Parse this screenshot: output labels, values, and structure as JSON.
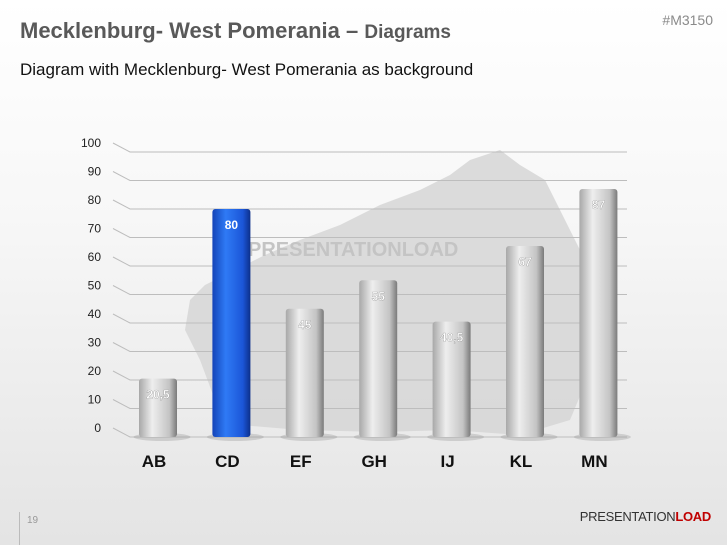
{
  "header": {
    "title_main": "Mecklenburg- West Pomerania – ",
    "title_sub": "Diagrams",
    "code": "#M3150",
    "subtitle": "Diagram with Mecklenburg- West Pomerania as background"
  },
  "footer": {
    "page_number": "19",
    "logo_part1": "PRESENTATION",
    "logo_part2": "LOAD"
  },
  "chart_data": {
    "type": "bar",
    "categories": [
      "AB",
      "CD",
      "EF",
      "GH",
      "IJ",
      "KL",
      "MN"
    ],
    "values": [
      20.5,
      80,
      45,
      55,
      40.5,
      67,
      87
    ],
    "data_labels": [
      "20,5",
      "80",
      "45",
      "55",
      "40,5",
      "67",
      "87"
    ],
    "ylim": [
      0,
      100
    ],
    "yticks": [
      "0",
      "10",
      "20",
      "30",
      "40",
      "50",
      "60",
      "70",
      "80",
      "90",
      "100"
    ],
    "grid": true,
    "highlight_category": "CD",
    "colors": {
      "bar": "#c8c8c8",
      "highlight": "#1f5fe0",
      "map": "#d2d2d2"
    },
    "background": "Mecklenburg-West Pomerania map",
    "watermark": "PRESENTATIONLOAD"
  }
}
